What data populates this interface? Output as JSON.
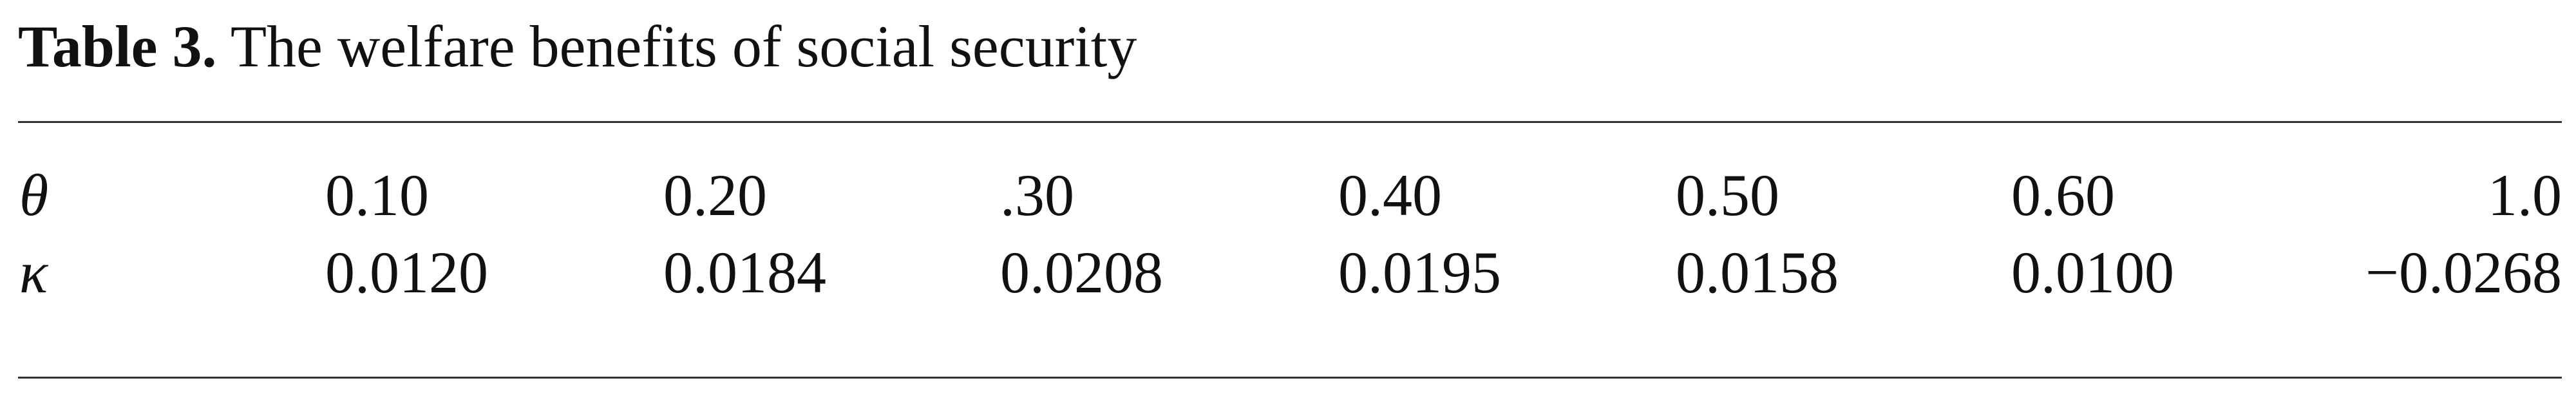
{
  "table": {
    "label": "Table 3.",
    "title": "The welfare benefits of social security",
    "rows": [
      {
        "symbol": "θ",
        "values": [
          "0.10",
          "0.20",
          ".30",
          "0.40",
          "0.50",
          "0.60",
          "1.0"
        ]
      },
      {
        "symbol": "κ",
        "values": [
          "0.0120",
          "0.0184",
          "0.0208",
          "0.0195",
          "0.0158",
          "0.0100",
          "−0.0268"
        ]
      }
    ]
  }
}
